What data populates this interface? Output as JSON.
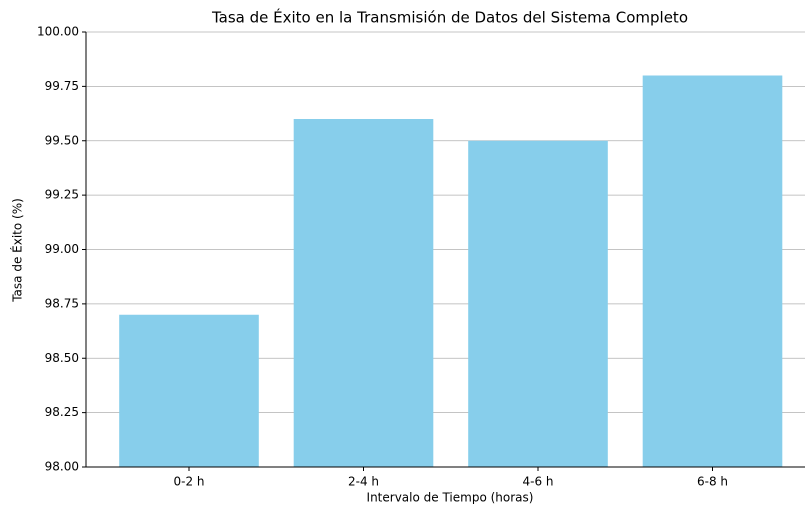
{
  "chart_data": {
    "type": "bar",
    "title": "Tasa de Éxito en la Transmisión de Datos del Sistema Completo",
    "xlabel": "Intervalo de Tiempo (horas)",
    "ylabel": "Tasa de Éxito (%)",
    "categories": [
      "0-2 h",
      "2-4 h",
      "4-6 h",
      "6-8 h"
    ],
    "values": [
      98.7,
      99.6,
      99.5,
      99.8
    ],
    "color": "#87ceeb",
    "ylim": [
      98,
      100
    ],
    "yticks": [
      {
        "value": 98,
        "label": "98.00"
      },
      {
        "value": 98.25,
        "label": "98.25"
      },
      {
        "value": 98.5,
        "label": "98.50"
      },
      {
        "value": 98.75,
        "label": "98.75"
      },
      {
        "value": 99,
        "label": "99.00"
      },
      {
        "value": 99.25,
        "label": "99.25"
      },
      {
        "value": 99.5,
        "label": "99.50"
      },
      {
        "value": 99.75,
        "label": "99.75"
      },
      {
        "value": 100,
        "label": "100.00"
      }
    ],
    "grid": true
  }
}
